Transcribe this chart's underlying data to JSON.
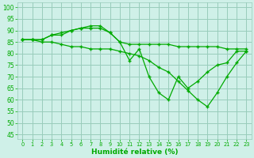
{
  "background_color": "#cff0e8",
  "grid_color": "#99ccbb",
  "line_color": "#00aa00",
  "xlabel": "Humidité relative (%)",
  "xlim": [
    -0.5,
    23.5
  ],
  "ylim": [
    43,
    102
  ],
  "yticks": [
    45,
    50,
    55,
    60,
    65,
    70,
    75,
    80,
    85,
    90,
    95,
    100
  ],
  "xticks": [
    0,
    1,
    2,
    3,
    4,
    5,
    6,
    7,
    8,
    9,
    10,
    11,
    12,
    13,
    14,
    15,
    16,
    17,
    18,
    19,
    20,
    21,
    22,
    23
  ],
  "series": [
    [
      86,
      86,
      86,
      88,
      89,
      90,
      91,
      92,
      92,
      89,
      85,
      84,
      84,
      84,
      84,
      84,
      83,
      83,
      83,
      83,
      83,
      82,
      82,
      82
    ],
    [
      86,
      86,
      86,
      88,
      88,
      90,
      91,
      91,
      91,
      89,
      85,
      77,
      82,
      70,
      63,
      60,
      70,
      65,
      68,
      72,
      75,
      76,
      81,
      81
    ],
    [
      86,
      86,
      85,
      85,
      84,
      83,
      83,
      82,
      82,
      82,
      81,
      80,
      79,
      77,
      74,
      72,
      68,
      64,
      60,
      57,
      63,
      70,
      76,
      81
    ]
  ]
}
